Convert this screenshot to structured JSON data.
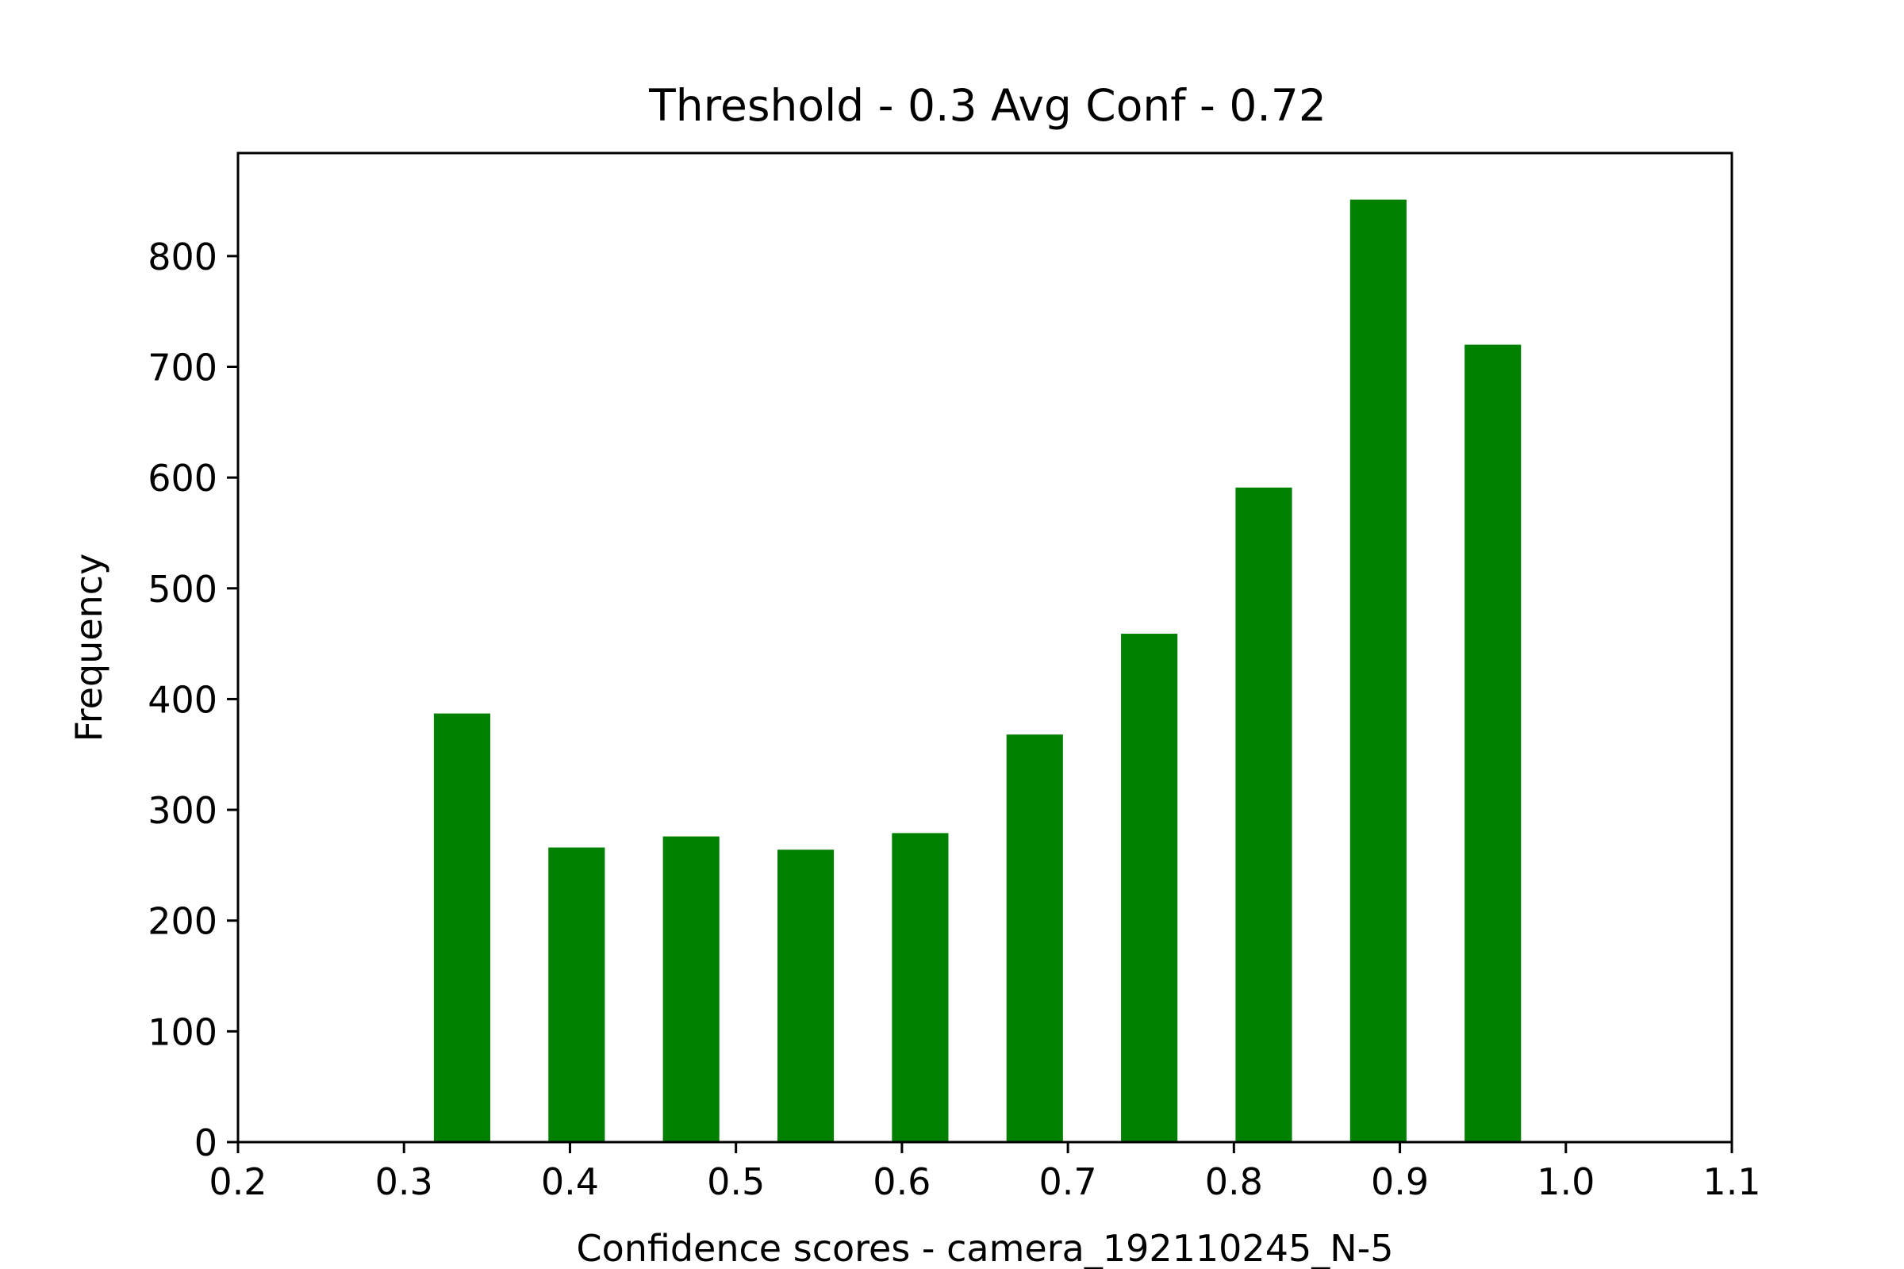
{
  "chart_data": {
    "type": "bar",
    "title": "Threshold - 0.3 Avg Conf - 0.72",
    "xlabel": "Confidence scores - camera_192110245_N-5",
    "ylabel": "Frequency",
    "xlim": [
      0.2,
      1.1
    ],
    "ylim": [
      0,
      893
    ],
    "x_ticks": [
      "0.2",
      "0.3",
      "0.4",
      "0.5",
      "0.6",
      "0.7",
      "0.8",
      "0.9",
      "1.0",
      "1.1"
    ],
    "y_ticks": [
      "0",
      "100",
      "200",
      "300",
      "400",
      "500",
      "600",
      "700",
      "800"
    ],
    "grid": false,
    "legend": "none",
    "bar_color": "#008000",
    "bars": [
      {
        "x_start": 0.318,
        "x_end": 0.352,
        "value": 387
      },
      {
        "x_start": 0.387,
        "x_end": 0.421,
        "value": 266
      },
      {
        "x_start": 0.456,
        "x_end": 0.49,
        "value": 276
      },
      {
        "x_start": 0.525,
        "x_end": 0.559,
        "value": 264
      },
      {
        "x_start": 0.594,
        "x_end": 0.628,
        "value": 279
      },
      {
        "x_start": 0.663,
        "x_end": 0.697,
        "value": 368
      },
      {
        "x_start": 0.732,
        "x_end": 0.766,
        "value": 459
      },
      {
        "x_start": 0.801,
        "x_end": 0.835,
        "value": 591
      },
      {
        "x_start": 0.87,
        "x_end": 0.904,
        "value": 851
      },
      {
        "x_start": 0.939,
        "x_end": 0.973,
        "value": 720
      }
    ]
  }
}
